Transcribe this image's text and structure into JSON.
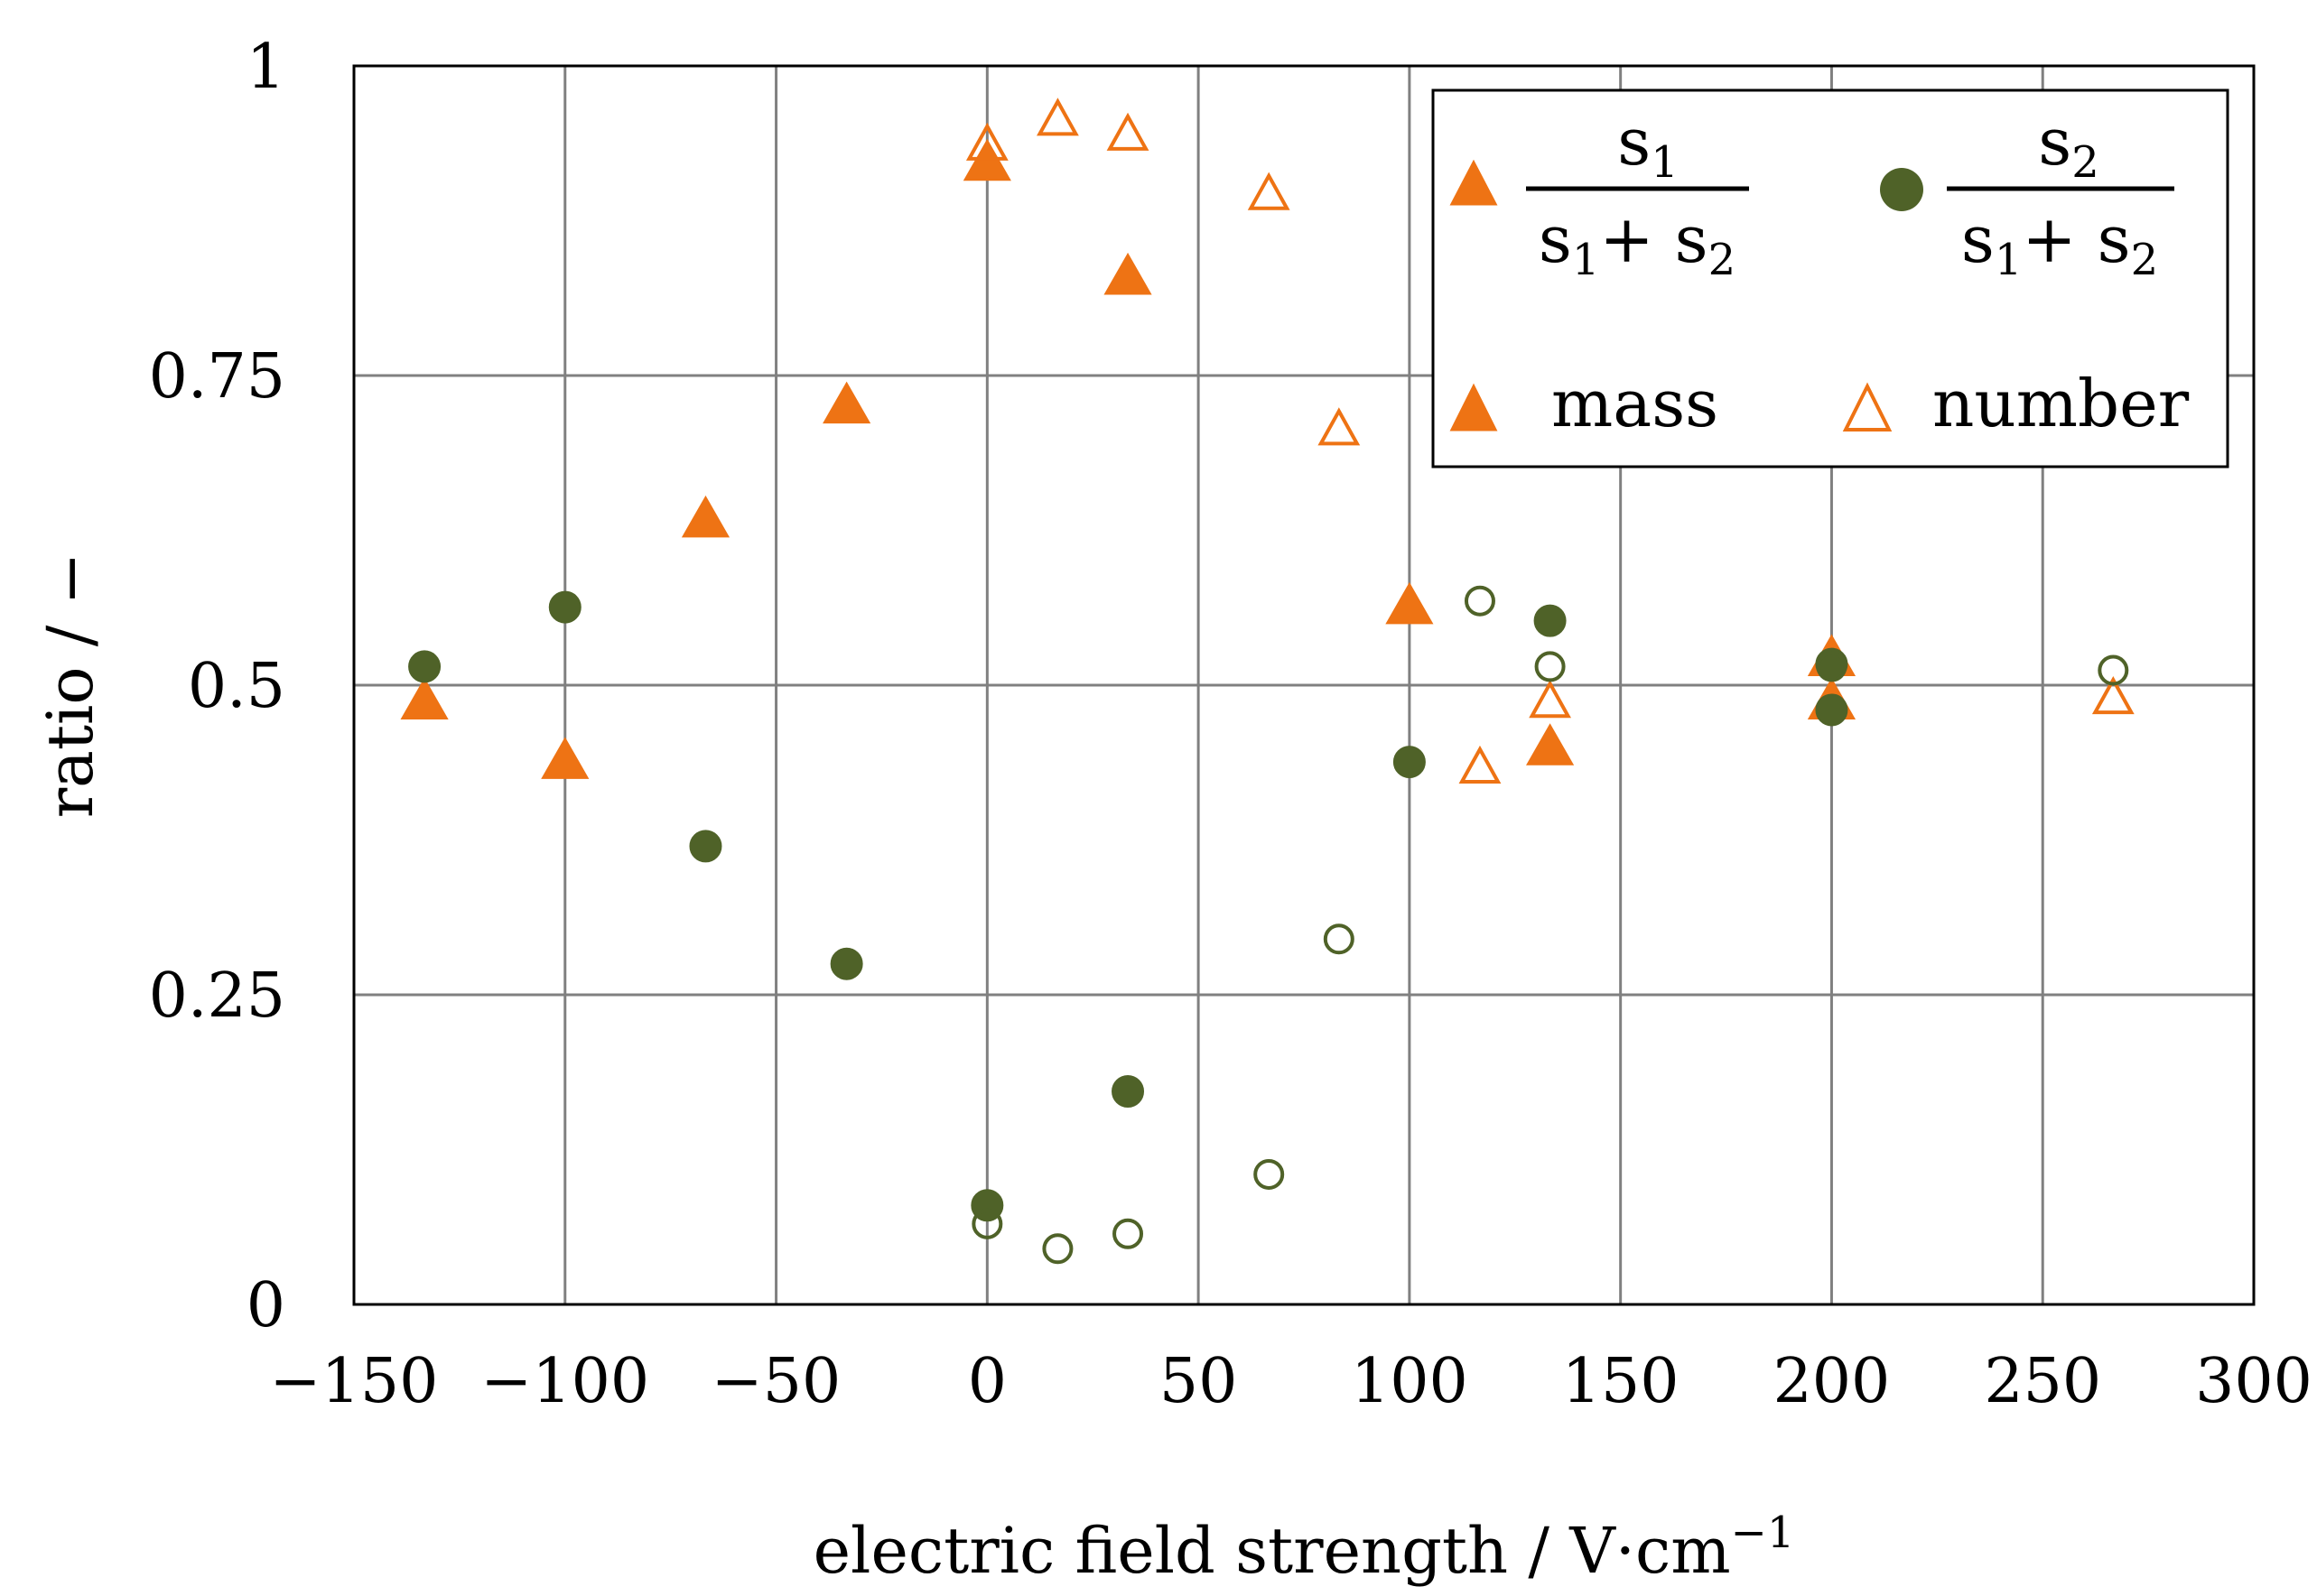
{
  "chart_data": {
    "type": "scatter",
    "title": "",
    "xlabel": "electric field strength / V·cm",
    "xlabel_superscript": "−1",
    "ylabel": "ratio / −",
    "xlim": [
      -150,
      300
    ],
    "ylim": [
      0,
      1
    ],
    "xticks": [
      -150,
      -100,
      -50,
      0,
      50,
      100,
      150,
      200,
      250,
      300
    ],
    "xtick_labels": [
      "−150",
      "−100",
      "−50",
      "0",
      "50",
      "100",
      "150",
      "200",
      "250",
      "300"
    ],
    "yticks": [
      0,
      0.25,
      0.5,
      0.75,
      1
    ],
    "ytick_labels": [
      "0",
      "0.25",
      "0.5",
      "0.75",
      "1"
    ],
    "grid": true,
    "legend_position": "top-right",
    "colors": {
      "s1": "#ee7314",
      "s2": "#4f6228",
      "grid": "#808080"
    },
    "legend": {
      "s1": {
        "num": "s",
        "num_sub": "1",
        "den_a": "s",
        "den_a_sub": "1",
        "plus": "+ ",
        "den_b": "s",
        "den_b_sub": "2"
      },
      "s2": {
        "num": "s",
        "num_sub": "2",
        "den_a": "s",
        "den_a_sub": "1",
        "plus": "+ ",
        "den_b": "s",
        "den_b_sub": "2"
      },
      "mass": "mass",
      "number": "number"
    },
    "series": [
      {
        "name": "s1/(s1+s2) mass",
        "marker": "triangle-filled",
        "color": "#ee7314",
        "x": [
          -133.3,
          -100,
          -66.7,
          -33.3,
          0,
          33.3,
          100,
          133.3,
          200,
          200
        ],
        "y": [
          0.485,
          0.437,
          0.632,
          0.724,
          0.92,
          0.828,
          0.562,
          0.448,
          0.52,
          0.485
        ]
      },
      {
        "name": "s1/(s1+s2) number",
        "marker": "triangle-open",
        "color": "#ee7314",
        "x": [
          0,
          16.7,
          33.3,
          66.7,
          83.3,
          116.7,
          133.3,
          200,
          266.7
        ],
        "y": [
          0.935,
          0.955,
          0.943,
          0.895,
          0.705,
          0.432,
          0.485,
          0.485,
          0.488
        ]
      },
      {
        "name": "s2/(s1+s2) mass",
        "marker": "circle-filled",
        "color": "#4f6228",
        "x": [
          -133.3,
          -100,
          -66.7,
          -33.3,
          0,
          33.3,
          100,
          133.3,
          200,
          200
        ],
        "y": [
          0.515,
          0.563,
          0.37,
          0.275,
          0.08,
          0.172,
          0.438,
          0.552,
          0.48,
          0.517
        ]
      },
      {
        "name": "s2/(s1+s2) number",
        "marker": "circle-open",
        "color": "#4f6228",
        "x": [
          0,
          16.7,
          33.3,
          66.7,
          83.3,
          116.7,
          133.3,
          200,
          266.7
        ],
        "y": [
          0.065,
          0.045,
          0.057,
          0.105,
          0.295,
          0.568,
          0.515,
          0.515,
          0.512
        ]
      }
    ]
  }
}
